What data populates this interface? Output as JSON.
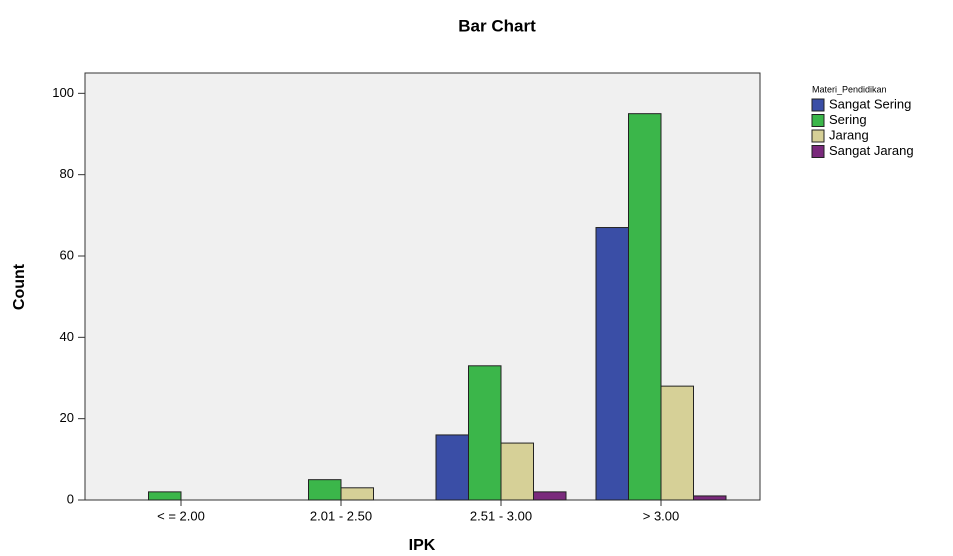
{
  "chart_data": {
    "type": "bar",
    "title": "Bar Chart",
    "x_label": "IPK",
    "y_label": "Count",
    "legend_title": "Materi_Pendidikan",
    "legend": "right",
    "categories": [
      "< = 2.00",
      "2.01 - 2.50",
      "2.51 - 3.00",
      "> 3.00"
    ],
    "series": [
      {
        "name": "Sangat Sering",
        "color": "#3a4ea6",
        "values": [
          0,
          0,
          16,
          67
        ]
      },
      {
        "name": "Sering",
        "color": "#3bb64a",
        "values": [
          2,
          5,
          33,
          95
        ]
      },
      {
        "name": "Jarang",
        "color": "#d6d097",
        "values": [
          0,
          3,
          14,
          28
        ]
      },
      {
        "name": "Sangat Jarang",
        "color": "#7a2a7c",
        "values": [
          0,
          0,
          2,
          1
        ]
      }
    ],
    "ylim": [
      0,
      105
    ],
    "yticks": [
      0,
      20,
      40,
      60,
      80,
      100
    ],
    "grid": false
  }
}
